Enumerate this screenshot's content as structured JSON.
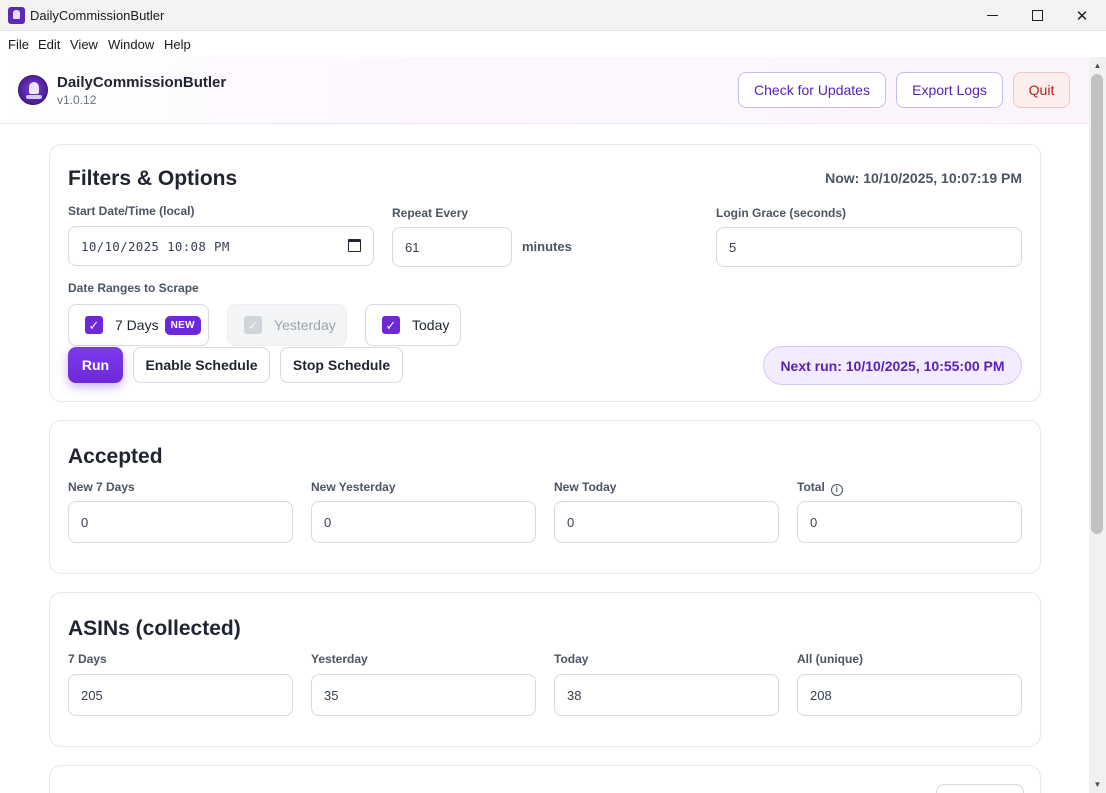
{
  "window": {
    "title": "DailyCommissionButler",
    "controls": {
      "minimize": "minimize-icon",
      "maximize": "maximize-icon",
      "close": "close-icon"
    }
  },
  "menu": [
    "File",
    "Edit",
    "View",
    "Window",
    "Help"
  ],
  "header": {
    "app_name": "DailyCommissionButler",
    "version": "v1.0.12",
    "buttons": {
      "updates": "Check for Updates",
      "export": "Export Logs",
      "quit": "Quit"
    }
  },
  "filters": {
    "title": "Filters & Options",
    "now": "Now: 10/10/2025, 10:07:19 PM",
    "start": {
      "label": "Start Date/Time (local)",
      "value": "10/10/2025 10:08 PM"
    },
    "repeat": {
      "label": "Repeat Every",
      "value": "61",
      "unit": "minutes"
    },
    "grace": {
      "label": "Login Grace (seconds)",
      "value": "5"
    },
    "ranges": {
      "label": "Date Ranges to Scrape",
      "options": [
        {
          "label": "7 Days",
          "checked": true,
          "disabled": false,
          "badge": "NEW"
        },
        {
          "label": "Yesterday",
          "checked": true,
          "disabled": true
        },
        {
          "label": "Today",
          "checked": true,
          "disabled": false
        }
      ]
    },
    "actions": {
      "run": "Run",
      "enable": "Enable Schedule",
      "stop": "Stop Schedule"
    },
    "next_run": "Next run: 10/10/2025, 10:55:00 PM"
  },
  "accepted": {
    "title": "Accepted",
    "fields": [
      {
        "label": "New 7 Days",
        "value": "0"
      },
      {
        "label": "New Yesterday",
        "value": "0"
      },
      {
        "label": "New Today",
        "value": "0"
      },
      {
        "label": "Total",
        "value": "0"
      }
    ]
  },
  "asins": {
    "title": "ASINs (collected)",
    "fields": [
      {
        "label": "7 Days",
        "value": "205"
      },
      {
        "label": "Yesterday",
        "value": "35"
      },
      {
        "label": "Today",
        "value": "38"
      },
      {
        "label": "All (unique)",
        "value": "208"
      }
    ]
  },
  "colors": {
    "accent": "#6d28d9",
    "accent_light": "#f3ecff",
    "danger": "#b42318"
  }
}
